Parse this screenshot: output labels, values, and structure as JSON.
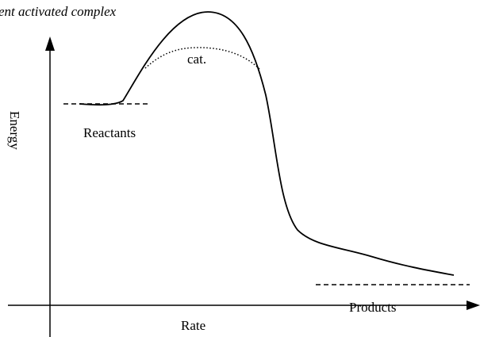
{
  "labels": {
    "title": "ent activated complex",
    "catalyst": "cat.",
    "reactants": "Reactants",
    "products": "Products",
    "y_axis": "Energy",
    "x_axis": "Rate"
  }
}
